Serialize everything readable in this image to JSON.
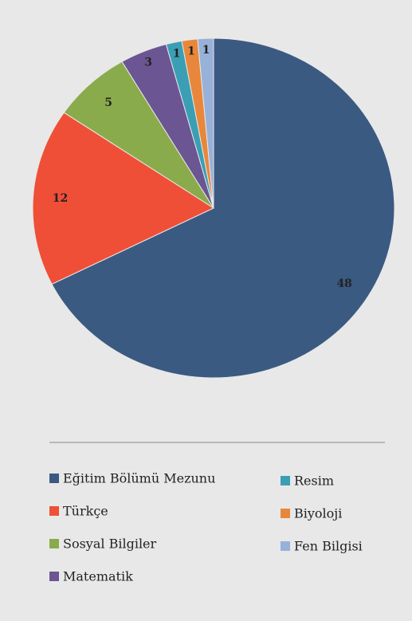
{
  "chart_data": {
    "type": "pie",
    "categories": [
      "Eğitim Bölümü Mezunu",
      "Türkçe",
      "Sosyal Bilgiler",
      "Matematik",
      "Resim",
      "Biyoloji",
      "Fen Bilgisi"
    ],
    "values": [
      48,
      12,
      5,
      3,
      1,
      1,
      1
    ],
    "colors": [
      "#3b5a82",
      "#ef4f36",
      "#8aab4b",
      "#6b5592",
      "#3a9fb4",
      "#e8873b",
      "#97b1d9"
    ]
  }
}
